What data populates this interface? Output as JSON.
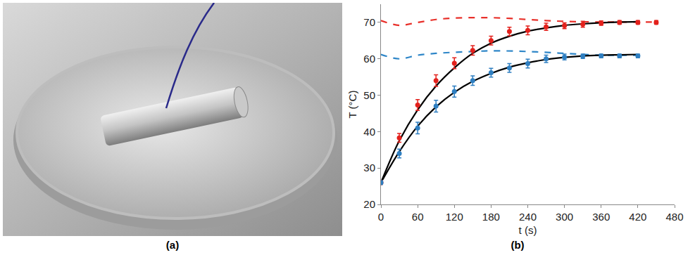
{
  "panels": {
    "a": "(a)",
    "b": "(b)"
  },
  "chart_data": {
    "type": "scatter",
    "xlabel": "t (s)",
    "ylabel": "T (°C)",
    "xlim": [
      0,
      480
    ],
    "xticks": [
      0,
      60,
      120,
      180,
      240,
      300,
      360,
      420,
      480
    ],
    "ylim": [
      20,
      75
    ],
    "yticks": [
      20,
      30,
      40,
      50,
      60,
      70
    ],
    "grid": false,
    "series": [
      {
        "type": "line",
        "line_style": "dashed",
        "color": "#e8302a",
        "x": [
          0,
          30,
          60,
          90,
          120,
          150,
          180,
          210,
          240,
          270,
          300,
          360,
          420,
          450
        ],
        "values": [
          70.5,
          69.2,
          70.0,
          70.8,
          71.2,
          71.3,
          71.3,
          71.1,
          70.8,
          70.5,
          70.3,
          70.1,
          70.1,
          70.1
        ]
      },
      {
        "type": "line",
        "line_style": "dashed",
        "color": "#2e86c8",
        "x": [
          0,
          30,
          60,
          90,
          120,
          150,
          180,
          240,
          300,
          360,
          420
        ],
        "values": [
          61.2,
          60.0,
          61.0,
          61.5,
          61.8,
          62.0,
          62.2,
          62.0,
          61.5,
          61.0,
          61.0
        ]
      },
      {
        "type": "line",
        "line_style": "solid",
        "color": "#000000",
        "x": [
          0,
          30,
          60,
          90,
          120,
          150,
          180,
          210,
          240,
          270,
          300,
          330,
          360,
          390,
          420
        ],
        "values": [
          26,
          37.5,
          46,
          52.5,
          57.5,
          61.5,
          64.3,
          66.2,
          67.6,
          68.5,
          69.2,
          69.6,
          69.9,
          70.1,
          70.2
        ]
      },
      {
        "type": "line",
        "line_style": "solid",
        "color": "#000000",
        "x": [
          0,
          30,
          60,
          90,
          120,
          150,
          180,
          210,
          240,
          270,
          300,
          330,
          360,
          390,
          420
        ],
        "values": [
          26,
          34.5,
          41.5,
          46.8,
          50.8,
          53.8,
          56,
          57.7,
          58.9,
          59.8,
          60.4,
          60.8,
          61,
          61.1,
          61.2
        ]
      },
      {
        "type": "scatter",
        "marker": "circle",
        "color": "#e3211c",
        "x": [
          0,
          30,
          60,
          90,
          120,
          150,
          180,
          210,
          240,
          270,
          300,
          330,
          360,
          390,
          420,
          450
        ],
        "values": [
          26,
          38.3,
          47.3,
          54,
          58.8,
          62.3,
          65,
          67.5,
          67.8,
          68.8,
          69.1,
          69.5,
          69.8,
          70,
          70,
          70
        ],
        "errors": [
          0.5,
          1.2,
          1.5,
          1.6,
          1.5,
          1.3,
          1.2,
          1.2,
          1.2,
          1.0,
          0.8,
          0.8,
          0.6,
          0.5,
          0.5,
          0.5
        ]
      },
      {
        "type": "scatter",
        "marker": "circle",
        "color": "#2f7fc1",
        "x": [
          0,
          30,
          60,
          90,
          120,
          150,
          180,
          210,
          240,
          270,
          300,
          330,
          360,
          390,
          420
        ],
        "values": [
          26,
          34,
          41,
          47,
          51,
          54,
          56.2,
          57.5,
          58.7,
          60,
          60.5,
          60.7,
          60.8,
          60.8,
          60.8
        ],
        "errors": [
          0.5,
          1.2,
          1.6,
          1.6,
          1.5,
          1.3,
          1.2,
          1.2,
          1.2,
          1.0,
          0.8,
          0.6,
          0.5,
          0.5,
          0.5
        ]
      }
    ]
  }
}
